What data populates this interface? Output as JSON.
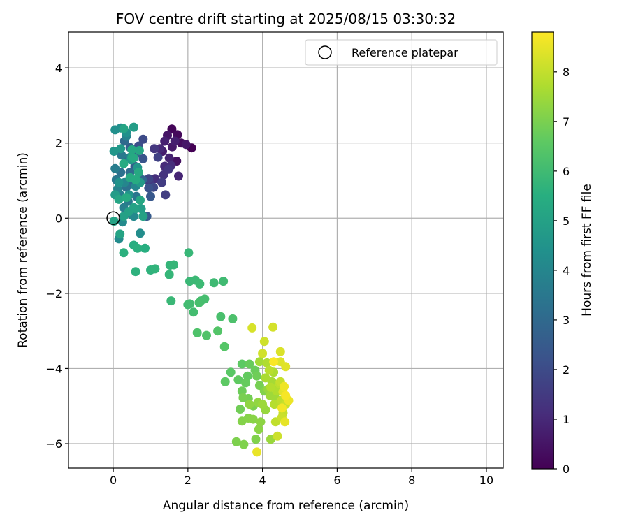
{
  "chart_data": {
    "type": "scatter",
    "title": "FOV centre drift starting at 2025/08/15 03:30:32",
    "xlabel": "Angular distance from reference (arcmin)",
    "ylabel": "Rotation from reference (arcmin)",
    "xlim": [
      -1.2,
      10.45
    ],
    "ylim": [
      -6.65,
      4.95
    ],
    "xticks": [
      0,
      2,
      4,
      6,
      8,
      10
    ],
    "yticks": [
      -6,
      -4,
      -2,
      0,
      2,
      4
    ],
    "grid": true,
    "legend": {
      "position": "upper right",
      "entries": [
        "Reference platepar"
      ]
    },
    "reference_point": {
      "label": "Reference platepar",
      "x": 0.0,
      "y": 0.0,
      "marker": "open circle"
    },
    "colorbar": {
      "label": "Hours from first FF file",
      "colormap": "viridis",
      "min": 0,
      "max": 8.8,
      "ticks": [
        0,
        1,
        2,
        3,
        4,
        5,
        6,
        7,
        8
      ]
    },
    "series": [
      {
        "color_scale": "hours",
        "points": [
          [
            2.1,
            1.87,
            0.0
          ],
          [
            1.57,
            2.37,
            0.1
          ],
          [
            1.72,
            2.22,
            0.2
          ],
          [
            1.82,
            2.0,
            0.3
          ],
          [
            1.7,
            1.52,
            0.4
          ],
          [
            1.45,
            2.2,
            0.5
          ],
          [
            1.95,
            1.96,
            0.55
          ],
          [
            1.58,
            1.9,
            0.6
          ],
          [
            1.32,
            1.78,
            0.7
          ],
          [
            1.65,
            2.05,
            0.75
          ],
          [
            1.38,
            2.05,
            0.8
          ],
          [
            1.5,
            1.6,
            0.85
          ],
          [
            1.75,
            1.12,
            0.9
          ],
          [
            1.25,
            1.85,
            1.0
          ],
          [
            1.38,
            1.38,
            1.05
          ],
          [
            1.55,
            1.4,
            1.1
          ],
          [
            1.12,
            1.05,
            1.2
          ],
          [
            1.35,
            1.15,
            1.3
          ],
          [
            1.48,
            1.3,
            1.35
          ],
          [
            1.1,
            1.85,
            1.4
          ],
          [
            0.98,
            0.95,
            1.5
          ],
          [
            1.3,
            0.95,
            1.55
          ],
          [
            1.4,
            0.62,
            1.6
          ],
          [
            1.2,
            1.62,
            1.7
          ],
          [
            0.95,
            1.05,
            1.8
          ],
          [
            1.08,
            0.82,
            1.9
          ],
          [
            0.8,
            2.1,
            2.0
          ],
          [
            0.68,
            1.92,
            2.1
          ],
          [
            0.95,
            0.8,
            2.2
          ],
          [
            0.8,
            1.58,
            2.3
          ],
          [
            1.0,
            0.58,
            2.4
          ],
          [
            0.9,
            0.05,
            2.5
          ],
          [
            0.58,
            1.38,
            2.55
          ],
          [
            0.45,
            1.88,
            2.6
          ],
          [
            0.35,
            1.58,
            2.7
          ],
          [
            0.62,
            1.72,
            2.8
          ],
          [
            0.78,
            1.02,
            2.9
          ],
          [
            0.3,
            2.05,
            3.0
          ],
          [
            0.45,
            1.22,
            3.1
          ],
          [
            0.52,
            0.95,
            3.2
          ],
          [
            0.2,
            1.22,
            3.25
          ],
          [
            0.35,
            0.82,
            3.3
          ],
          [
            0.62,
            0.58,
            3.4
          ],
          [
            0.08,
            1.02,
            3.5
          ],
          [
            0.22,
            1.68,
            3.55
          ],
          [
            0.4,
            0.45,
            3.6
          ],
          [
            0.18,
            0.62,
            3.65
          ],
          [
            0.05,
            1.32,
            3.7
          ],
          [
            0.28,
            0.28,
            3.75
          ],
          [
            0.5,
            0.08,
            3.8
          ],
          [
            0.45,
            1.62,
            3.85
          ],
          [
            0.35,
            2.18,
            3.9
          ],
          [
            0.12,
            0.78,
            3.95
          ],
          [
            0.3,
            0.95,
            4.0
          ],
          [
            0.6,
            0.85,
            4.05
          ],
          [
            0.55,
            0.05,
            4.1
          ],
          [
            0.25,
            -0.1,
            4.15
          ],
          [
            0.15,
            -0.55,
            4.2
          ],
          [
            0.72,
            -0.4,
            4.25
          ],
          [
            0.2,
            2.4,
            4.3
          ],
          [
            0.05,
            2.35,
            4.35
          ],
          [
            0.35,
            2.28,
            4.4
          ],
          [
            0.15,
            0.95,
            4.45
          ],
          [
            0.42,
            0.62,
            4.5
          ],
          [
            0.65,
            1.35,
            4.55
          ],
          [
            0.02,
            1.78,
            4.6
          ],
          [
            0.2,
            1.85,
            4.65
          ],
          [
            0.48,
            1.55,
            4.7
          ],
          [
            0.72,
            0.95,
            4.75
          ],
          [
            0.05,
            0.62,
            4.8
          ],
          [
            0.55,
            2.42,
            4.85
          ],
          [
            0.75,
            0.25,
            4.9
          ],
          [
            0.6,
            0.25,
            4.95
          ],
          [
            0.28,
            0.05,
            4.98
          ],
          [
            0.8,
            0.05,
            5.0
          ],
          [
            0.42,
            0.18,
            5.02
          ],
          [
            0.55,
            0.28,
            5.05
          ],
          [
            0.02,
            -0.08,
            5.08
          ],
          [
            0.18,
            -0.42,
            5.1
          ],
          [
            0.28,
            2.38,
            5.12
          ],
          [
            0.15,
            0.5,
            5.15
          ],
          [
            0.7,
            1.8,
            5.18
          ],
          [
            0.72,
            0.48,
            5.2
          ],
          [
            0.5,
            1.82,
            5.22
          ],
          [
            0.5,
            1.62,
            5.25
          ],
          [
            0.68,
            1.22,
            5.28
          ],
          [
            0.45,
            1.08,
            5.3
          ],
          [
            0.55,
            1.6,
            5.32
          ],
          [
            0.35,
            0.55,
            5.35
          ],
          [
            0.28,
            1.45,
            5.38
          ],
          [
            0.6,
            1.02,
            5.4
          ],
          [
            0.55,
            -0.72,
            5.45
          ],
          [
            0.85,
            -0.8,
            5.5
          ],
          [
            0.65,
            -0.8,
            5.55
          ],
          [
            0.28,
            -0.92,
            5.58
          ],
          [
            0.6,
            -1.42,
            5.62
          ],
          [
            1.0,
            -1.38,
            5.66
          ],
          [
            1.12,
            -1.35,
            5.7
          ],
          [
            1.52,
            -1.25,
            5.74
          ],
          [
            1.5,
            -1.5,
            5.78
          ],
          [
            1.62,
            -1.24,
            5.8
          ],
          [
            2.02,
            -0.92,
            5.83
          ],
          [
            1.55,
            -2.2,
            5.86
          ],
          [
            2.05,
            -1.68,
            5.88
          ],
          [
            2.2,
            -1.65,
            5.9
          ],
          [
            2.32,
            -1.75,
            5.93
          ],
          [
            2.7,
            -1.72,
            5.96
          ],
          [
            2.95,
            -1.68,
            6.0
          ],
          [
            2.0,
            -2.3,
            6.03
          ],
          [
            2.05,
            -2.28,
            6.05
          ],
          [
            2.15,
            -2.5,
            6.08
          ],
          [
            2.35,
            -2.2,
            6.1
          ],
          [
            2.45,
            -2.15,
            6.13
          ],
          [
            2.3,
            -2.25,
            6.16
          ],
          [
            2.88,
            -2.62,
            6.2
          ],
          [
            3.2,
            -2.68,
            6.25
          ],
          [
            2.25,
            -3.05,
            6.3
          ],
          [
            2.5,
            -3.12,
            6.33
          ],
          [
            2.8,
            -3.0,
            6.38
          ],
          [
            2.98,
            -3.42,
            6.42
          ],
          [
            3.15,
            -4.1,
            6.5
          ],
          [
            3.0,
            -4.35,
            6.55
          ],
          [
            3.45,
            -3.88,
            6.58
          ],
          [
            3.35,
            -4.3,
            6.62
          ],
          [
            3.6,
            -4.2,
            6.66
          ],
          [
            3.55,
            -4.38,
            6.7
          ],
          [
            3.65,
            -3.88,
            6.73
          ],
          [
            3.8,
            -4.05,
            6.76
          ],
          [
            3.45,
            -4.6,
            6.8
          ],
          [
            3.85,
            -4.2,
            6.83
          ],
          [
            3.4,
            -5.08,
            6.86
          ],
          [
            3.62,
            -4.8,
            6.9
          ],
          [
            3.92,
            -4.45,
            6.93
          ],
          [
            3.48,
            -4.78,
            6.96
          ],
          [
            3.75,
            -5.0,
            7.0
          ],
          [
            3.3,
            -5.95,
            7.03
          ],
          [
            3.5,
            -6.02,
            7.06
          ],
          [
            3.82,
            -5.88,
            7.08
          ],
          [
            4.05,
            -4.6,
            7.1
          ],
          [
            3.45,
            -5.4,
            7.13
          ],
          [
            3.62,
            -5.32,
            7.16
          ],
          [
            3.75,
            -5.35,
            7.2
          ],
          [
            3.9,
            -5.62,
            7.23
          ],
          [
            3.95,
            -5.42,
            7.26
          ],
          [
            3.65,
            -4.95,
            7.3
          ],
          [
            3.88,
            -4.9,
            7.33
          ],
          [
            4.15,
            -4.55,
            7.36
          ],
          [
            4.08,
            -5.1,
            7.4
          ],
          [
            4.22,
            -5.88,
            7.43
          ],
          [
            4.0,
            -4.95,
            7.46
          ],
          [
            4.2,
            -4.72,
            7.5
          ],
          [
            4.35,
            -4.8,
            7.53
          ],
          [
            3.92,
            -3.82,
            7.56
          ],
          [
            4.25,
            -4.35,
            7.6
          ],
          [
            4.4,
            -4.52,
            7.63
          ],
          [
            4.08,
            -4.25,
            7.66
          ],
          [
            4.3,
            -4.1,
            7.7
          ],
          [
            4.12,
            -3.85,
            7.73
          ],
          [
            4.38,
            -4.6,
            7.76
          ],
          [
            4.22,
            -4.5,
            7.8
          ],
          [
            4.32,
            -4.95,
            7.83
          ],
          [
            4.18,
            -4.05,
            7.86
          ],
          [
            4.45,
            -4.4,
            7.9
          ],
          [
            4.5,
            -4.85,
            7.93
          ],
          [
            4.35,
            -5.42,
            7.96
          ],
          [
            4.55,
            -5.18,
            8.0
          ],
          [
            4.48,
            -4.35,
            8.03
          ],
          [
            4.62,
            -4.95,
            8.06
          ],
          [
            4.52,
            -5.3,
            8.1
          ],
          [
            4.4,
            -5.8,
            8.13
          ],
          [
            4.05,
            -3.28,
            8.16
          ],
          [
            4.0,
            -3.6,
            8.2
          ],
          [
            4.28,
            -2.9,
            8.24
          ],
          [
            3.72,
            -2.92,
            8.28
          ],
          [
            4.48,
            -3.55,
            8.32
          ],
          [
            4.48,
            -3.82,
            8.36
          ],
          [
            4.62,
            -3.95,
            8.4
          ],
          [
            4.55,
            -4.62,
            8.44
          ],
          [
            4.6,
            -5.42,
            8.48
          ],
          [
            3.85,
            -6.22,
            8.52
          ],
          [
            4.7,
            -4.85,
            8.56
          ],
          [
            4.58,
            -4.48,
            8.6
          ],
          [
            4.52,
            -5.05,
            8.65
          ],
          [
            4.62,
            -4.72,
            8.7
          ],
          [
            4.3,
            -3.82,
            8.75
          ]
        ]
      }
    ]
  }
}
